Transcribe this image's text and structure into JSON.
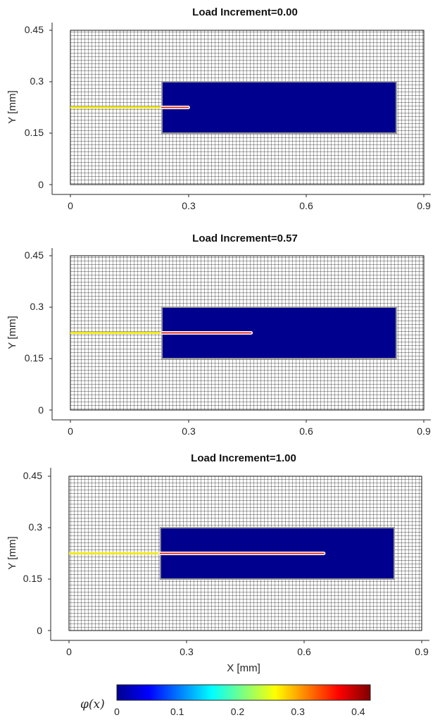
{
  "chart_data": [
    {
      "type": "heatmap",
      "title": "Load Increment=0.00",
      "xlabel": "",
      "ylabel": "Y [mm]",
      "xlim": [
        0,
        0.9
      ],
      "ylim": [
        0,
        0.45
      ],
      "xticks": [
        "0",
        "0.3",
        "0.6",
        "0.9"
      ],
      "yticks": [
        "0",
        "0.15",
        "0.3",
        "0.45"
      ],
      "refined_region": {
        "x": [
          0.233,
          0.83
        ],
        "y": [
          0.15,
          0.3
        ]
      },
      "initial_crack": {
        "x": [
          0,
          0.233
        ],
        "y": 0.225
      },
      "crack_tip_x": 0.3,
      "crack_y": 0.225
    },
    {
      "type": "heatmap",
      "title": "Load Increment=0.57",
      "xlabel": "",
      "ylabel": "Y [mm]",
      "xlim": [
        0,
        0.9
      ],
      "ylim": [
        0,
        0.45
      ],
      "xticks": [
        "0",
        "0.3",
        "0.6",
        "0.9"
      ],
      "yticks": [
        "0",
        "0.15",
        "0.3",
        "0.45"
      ],
      "refined_region": {
        "x": [
          0.233,
          0.83
        ],
        "y": [
          0.15,
          0.3
        ]
      },
      "initial_crack": {
        "x": [
          0,
          0.233
        ],
        "y": 0.225
      },
      "crack_tip_x": 0.46,
      "crack_y": 0.225
    },
    {
      "type": "heatmap",
      "title": "Load Increment=1.00",
      "xlabel": "X [mm]",
      "ylabel": "Y [mm]",
      "xlim": [
        0,
        0.9
      ],
      "ylim": [
        0,
        0.45
      ],
      "xticks": [
        "0",
        "0.3",
        "0.6",
        "0.9"
      ],
      "yticks": [
        "0",
        "0.15",
        "0.3",
        "0.45"
      ],
      "refined_region": {
        "x": [
          0.233,
          0.83
        ],
        "y": [
          0.15,
          0.3
        ]
      },
      "initial_crack": {
        "x": [
          0,
          0.233
        ],
        "y": 0.225
      },
      "crack_tip_x": 0.65,
      "crack_y": 0.225
    }
  ],
  "colorbar": {
    "label": "φ(x)",
    "range": [
      0,
      0.42
    ],
    "ticks": [
      "0",
      "0.1",
      "0.2",
      "0.3",
      "0.4"
    ],
    "tick_values": [
      0,
      0.1,
      0.2,
      0.3,
      0.4
    ]
  },
  "colors": {
    "mesh": "#111111",
    "field_low": "#00008f",
    "region_border": "#9a9a9a",
    "initial_crack": "#f2ea1c",
    "crack_core": "#e0301e",
    "crack_halo": "#ffffff",
    "axis": "#262626"
  }
}
